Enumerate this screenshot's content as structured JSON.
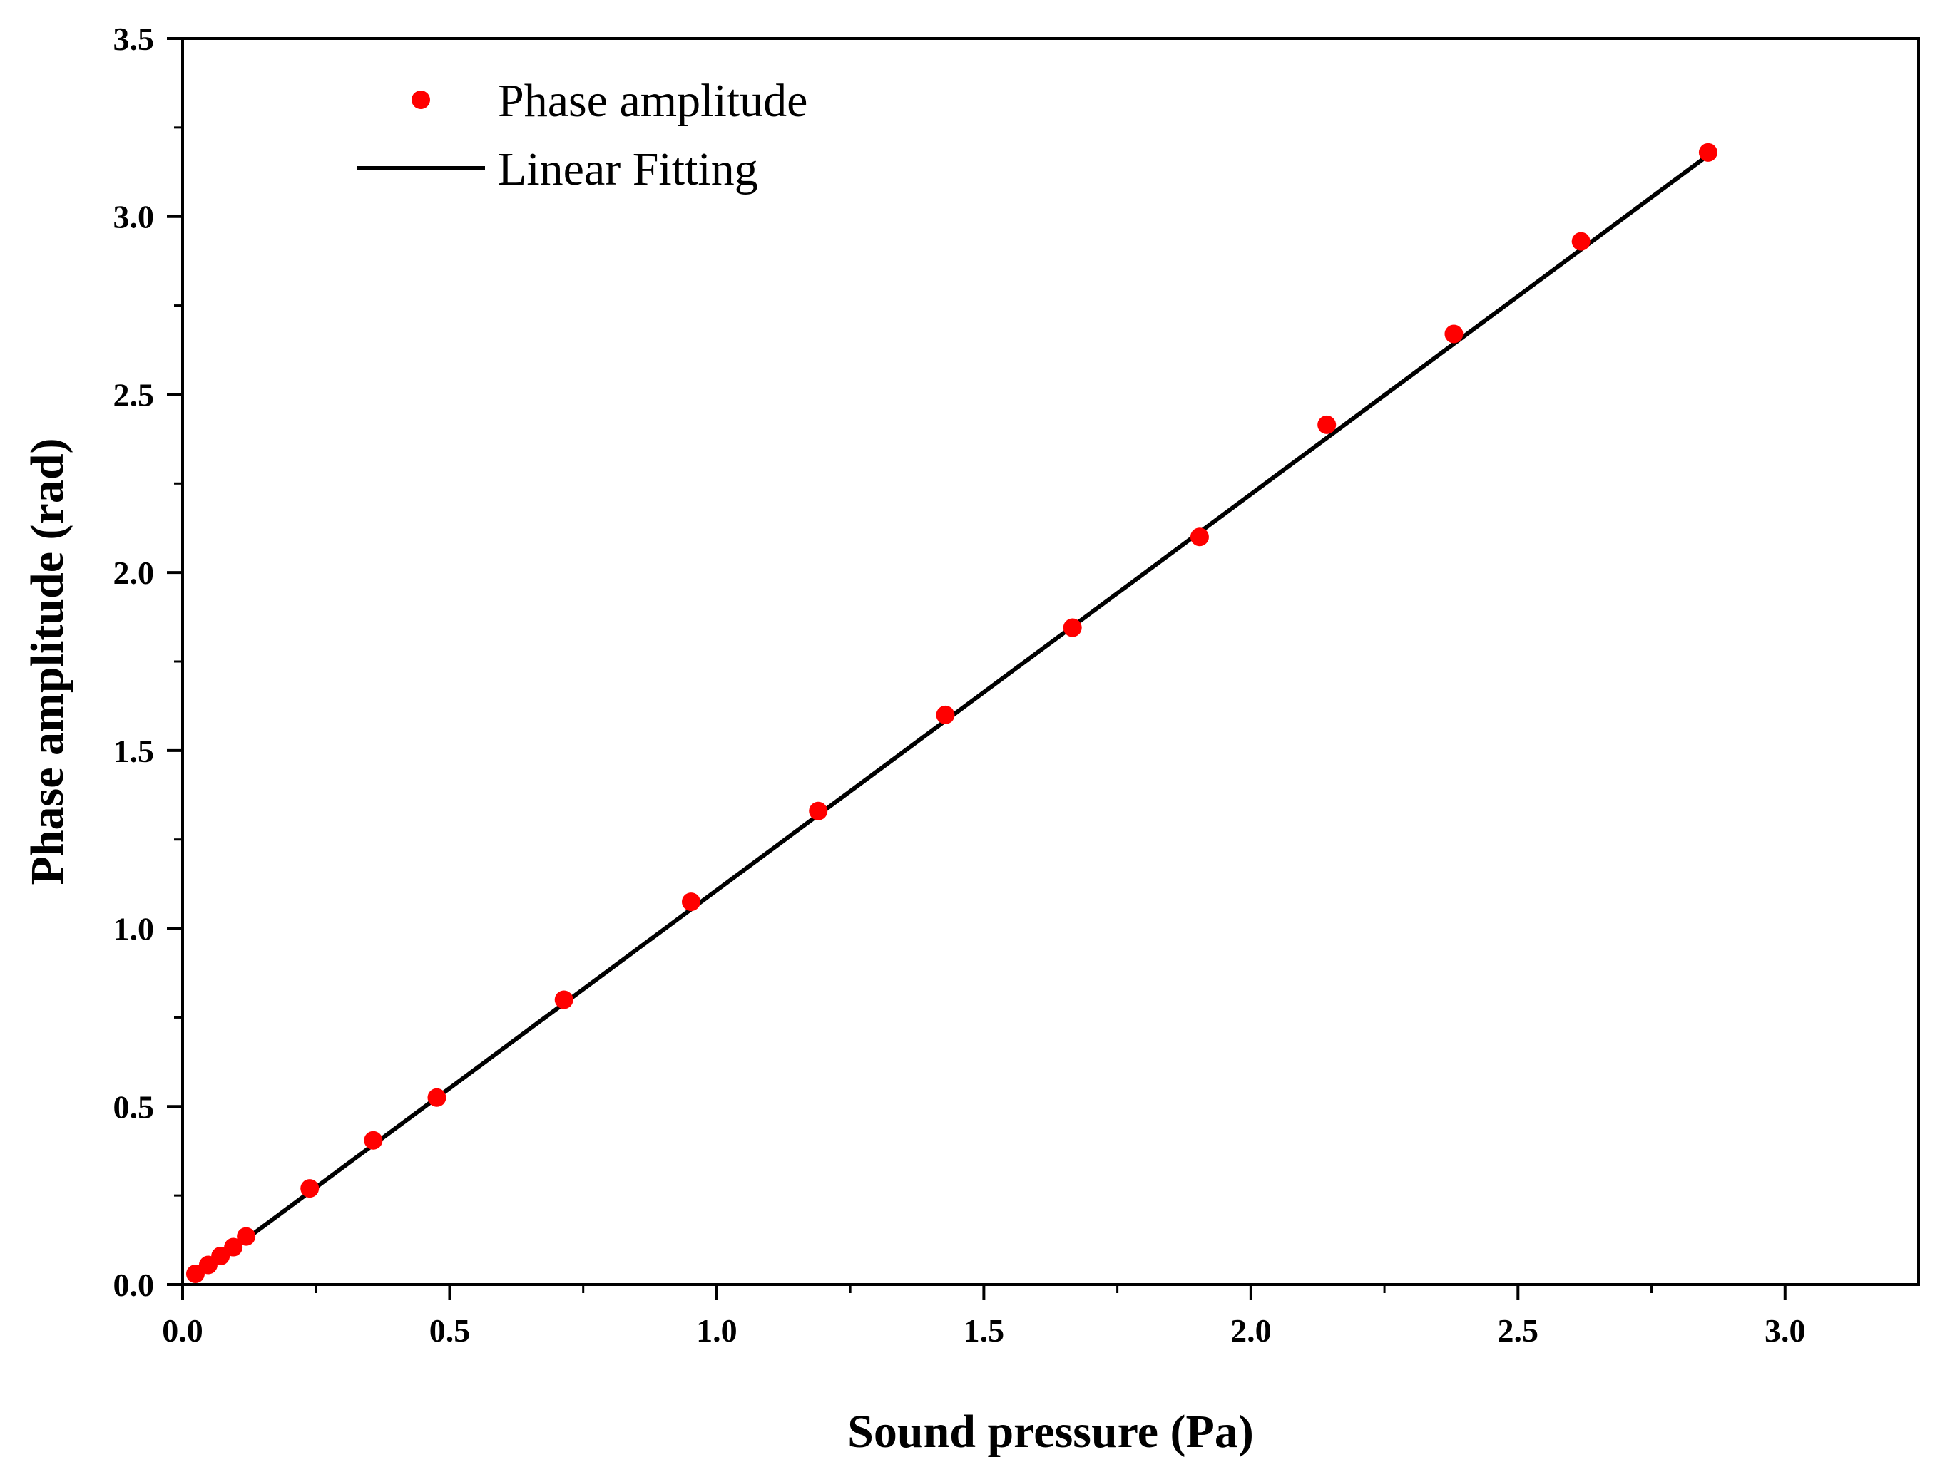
{
  "chart_data": {
    "type": "scatter",
    "title": "",
    "xlabel": "Sound pressure (Pa)",
    "ylabel": "Phase amplitude (rad)",
    "xlim": [
      0.0,
      3.25
    ],
    "ylim": [
      0.0,
      3.5
    ],
    "xticks": [
      "0.0",
      "0.5",
      "1.0",
      "1.5",
      "2.0",
      "2.5",
      "3.0"
    ],
    "yticks": [
      "0.0",
      "0.5",
      "1.0",
      "1.5",
      "2.0",
      "2.5",
      "3.0",
      "3.5"
    ],
    "grid": false,
    "legend_position": "top-left",
    "series": [
      {
        "name": "Phase amplitude",
        "kind": "scatter",
        "color": "#ff0000",
        "x": [
          0.024,
          0.048,
          0.071,
          0.095,
          0.119,
          0.238,
          0.357,
          0.476,
          0.714,
          0.952,
          1.19,
          1.428,
          1.666,
          1.904,
          2.142,
          2.38,
          2.618,
          2.856
        ],
        "y": [
          0.03,
          0.055,
          0.08,
          0.105,
          0.135,
          0.27,
          0.405,
          0.525,
          0.8,
          1.075,
          1.33,
          1.6,
          1.845,
          2.1,
          2.415,
          2.67,
          2.93,
          3.18
        ]
      },
      {
        "name": "Linear Fitting",
        "kind": "line",
        "color": "#000000",
        "x": [
          0.024,
          2.856
        ],
        "y": [
          0.022,
          3.172
        ]
      }
    ]
  }
}
